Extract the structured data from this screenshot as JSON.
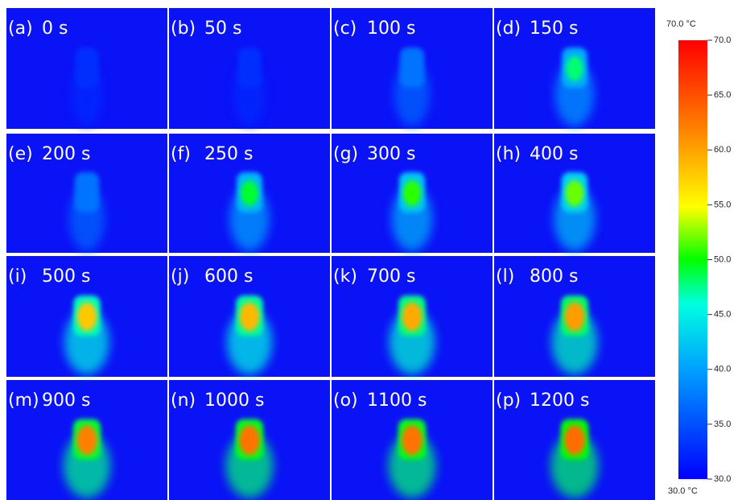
{
  "panels": [
    {
      "letter": "(a)",
      "time": "0 s"
    },
    {
      "letter": "(b)",
      "time": "50 s"
    },
    {
      "letter": "(c)",
      "time": "100 s"
    },
    {
      "letter": "(d)",
      "time": "150 s"
    },
    {
      "letter": "(e)",
      "time": "200 s"
    },
    {
      "letter": "(f)",
      "time": "250 s"
    },
    {
      "letter": "(g)",
      "time": "300 s"
    },
    {
      "letter": "(h)",
      "time": "400 s"
    },
    {
      "letter": "(i)",
      "time": "500 s"
    },
    {
      "letter": "(j)",
      "time": "600 s"
    },
    {
      "letter": "(k)",
      "time": "700 s"
    },
    {
      "letter": "(l)",
      "time": "800 s"
    },
    {
      "letter": "(m)",
      "time": "900 s"
    },
    {
      "letter": "(n)",
      "time": "1000 s"
    },
    {
      "letter": "(o)",
      "time": "1100 s"
    },
    {
      "letter": "(p)",
      "time": "1200 s"
    }
  ],
  "colorbar": {
    "top_label": "70.0 °C",
    "bottom_label": "30.0 °C",
    "lim": [
      30,
      70
    ],
    "ticks": [
      {
        "value": 30,
        "label": "30.0"
      },
      {
        "value": 35,
        "label": "35.0"
      },
      {
        "value": 40,
        "label": "40.0"
      },
      {
        "value": 45,
        "label": "45.0"
      },
      {
        "value": 50,
        "label": "50.0"
      },
      {
        "value": 55,
        "label": "55.0"
      },
      {
        "value": 60,
        "label": "60.0"
      },
      {
        "value": 65,
        "label": "65.0"
      },
      {
        "value": 70,
        "label": "70.0"
      }
    ]
  }
}
